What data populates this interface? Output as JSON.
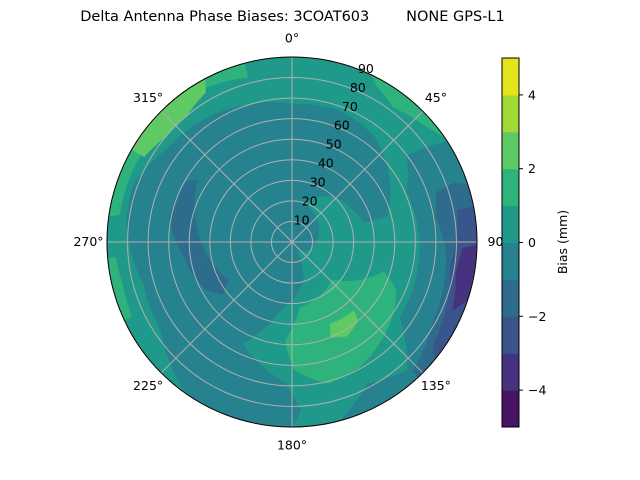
{
  "chart_data": {
    "type": "polar-contour",
    "title": "Delta Antenna Phase Biases: 3COAT603        NONE GPS-L1",
    "theta_zero": "top",
    "theta_direction": "clockwise",
    "angle_ticks": [
      "0°",
      "45°",
      "90",
      "135°",
      "180°",
      "225°",
      "270°",
      "315°"
    ],
    "angle_tick_values": [
      0,
      45,
      90,
      135,
      180,
      225,
      270,
      315
    ],
    "radial_ticks": [
      10,
      20,
      30,
      40,
      50,
      60,
      70,
      80,
      90
    ],
    "radial_range": [
      0,
      90
    ],
    "grid": true,
    "colorbar": {
      "label": "Bias (mm)",
      "levels": [
        -5,
        -4,
        -3,
        -2,
        -1,
        0,
        1,
        2,
        3,
        4,
        5
      ],
      "colors": [
        "#471366",
        "#46327e",
        "#3a548c",
        "#2e6c8e",
        "#26828e",
        "#1f9a8a",
        "#2eb37c",
        "#5fc963",
        "#a0da39",
        "#e4e41a"
      ],
      "ticks": [
        -4,
        -2,
        0,
        2,
        4
      ],
      "tick_labels": [
        "−4",
        "−2",
        "0",
        "2",
        "4"
      ]
    },
    "background_level": [
      0,
      1
    ],
    "regions": [
      {
        "level": [
          -1,
          0
        ],
        "points": [
          [
            2,
            67
          ],
          [
            20,
            68
          ],
          [
            38,
            65
          ],
          [
            56,
            57
          ],
          [
            75,
            48
          ],
          [
            75,
            36
          ],
          [
            42,
            30
          ],
          [
            16,
            20
          ],
          [
            150,
            5
          ],
          [
            162,
            18
          ],
          [
            190,
            34
          ],
          [
            206,
            55
          ],
          [
            182,
            69
          ],
          [
            177,
            82
          ],
          [
            180,
            90
          ],
          [
            215,
            90
          ],
          [
            236,
            77
          ],
          [
            254,
            75
          ],
          [
            276,
            81
          ],
          [
            290,
            82
          ],
          [
            306,
            76
          ],
          [
            327,
            73
          ],
          [
            343,
            70
          ]
        ]
      },
      {
        "level": [
          -2,
          -1
        ],
        "points": [
          [
            300,
            59
          ],
          [
            303,
            55
          ],
          [
            273,
            45
          ],
          [
            239,
            36
          ],
          [
            233,
            42
          ],
          [
            241,
            48
          ],
          [
            262,
            53
          ],
          [
            282,
            61
          ]
        ]
      },
      {
        "level": [
          -1,
          0
        ],
        "points": [
          [
            53,
            70
          ],
          [
            57,
            90
          ],
          [
            165,
            90
          ],
          [
            152,
            78
          ],
          [
            138,
            84
          ],
          [
            125,
            64
          ],
          [
            88,
            62
          ],
          [
            66,
            61
          ]
        ]
      },
      {
        "level": [
          -2,
          -1
        ],
        "points": [
          [
            71,
            74
          ],
          [
            70,
            84
          ],
          [
            72,
            90
          ],
          [
            137,
            90
          ],
          [
            137,
            86
          ],
          [
            120,
            79
          ],
          [
            93,
            75
          ],
          [
            80,
            71
          ]
        ]
      },
      {
        "level": [
          -3,
          -2
        ],
        "points": [
          [
            79,
            82
          ],
          [
            79,
            90
          ],
          [
            130,
            90
          ],
          [
            126,
            85
          ],
          [
            99,
            78
          ]
        ]
      },
      {
        "level": [
          -4,
          -3
        ],
        "points": [
          [
            92,
            83
          ],
          [
            91,
            90
          ],
          [
            108,
            90
          ],
          [
            113,
            85
          ],
          [
            100,
            81
          ]
        ]
      },
      {
        "level": [
          1,
          2
        ],
        "points": [
          [
            133,
            27
          ],
          [
            108,
            47
          ],
          [
            115,
            56
          ],
          [
            130,
            62
          ],
          [
            151,
            69
          ],
          [
            166,
            71
          ],
          [
            179,
            62
          ],
          [
            184,
            48
          ],
          [
            173,
            32
          ]
        ]
      },
      {
        "level": [
          2,
          3
        ],
        "points": [
          [
            155,
            44
          ],
          [
            138,
            45
          ],
          [
            140,
            50
          ],
          [
            150,
            53
          ],
          [
            158,
            50
          ]
        ]
      },
      {
        "level": [
          1,
          2
        ],
        "points": [
          [
            345,
            83
          ],
          [
            345,
            90
          ],
          [
            278,
            90
          ],
          [
            279,
            85
          ],
          [
            298,
            85
          ],
          [
            312,
            82
          ],
          [
            331,
            86
          ]
        ]
      },
      {
        "level": [
          2,
          3
        ],
        "points": [
          [
            300,
            83
          ],
          [
            310,
            80
          ],
          [
            320,
            80
          ],
          [
            330,
            84
          ],
          [
            332,
            90
          ],
          [
            300,
            90
          ]
        ]
      },
      {
        "level": [
          1,
          2
        ],
        "points": [
          [
            29,
            86
          ],
          [
            37,
            82
          ],
          [
            49,
            86
          ],
          [
            56,
            90
          ],
          [
            25,
            90
          ]
        ]
      },
      {
        "level": [
          1,
          2
        ],
        "points": [
          [
            245,
            86
          ],
          [
            255,
            85
          ],
          [
            265,
            86
          ],
          [
            265,
            90
          ],
          [
            245,
            90
          ]
        ]
      }
    ]
  }
}
